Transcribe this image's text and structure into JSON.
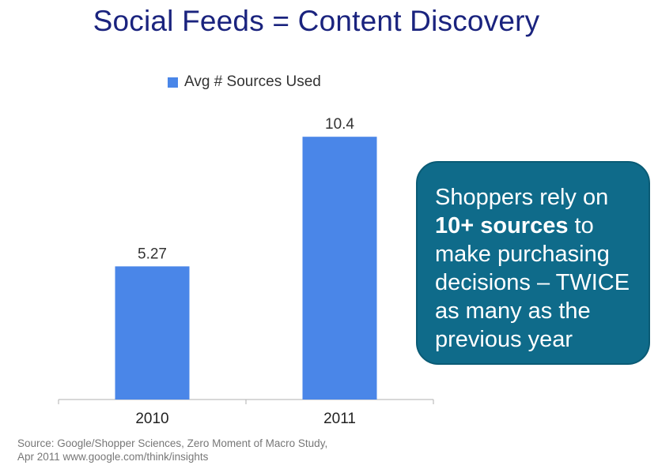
{
  "title": "Social Feeds = Content Discovery",
  "colors": {
    "bar": "#4a86e8",
    "title": "#1a237e",
    "callout_bg": "#0f6b8a"
  },
  "chart_data": {
    "type": "bar",
    "categories": [
      "2010",
      "2011"
    ],
    "series": [
      {
        "name": "Avg # Sources Used",
        "values": [
          5.27,
          10.4
        ],
        "labels": [
          "5.27",
          "10.4"
        ]
      }
    ],
    "ylim": [
      0,
      12
    ],
    "grid": false,
    "legend": "top"
  },
  "callout": {
    "text_before": "Shoppers rely on ",
    "emphasis": "10+ sources",
    "text_after": " to make purchasing decisions – TWICE as many as the previous year"
  },
  "source": {
    "line1": "Source: Google/Shopper Sciences, Zero Moment of Macro Study,",
    "line2": "Apr 2011 www.google.com/think/insights"
  }
}
